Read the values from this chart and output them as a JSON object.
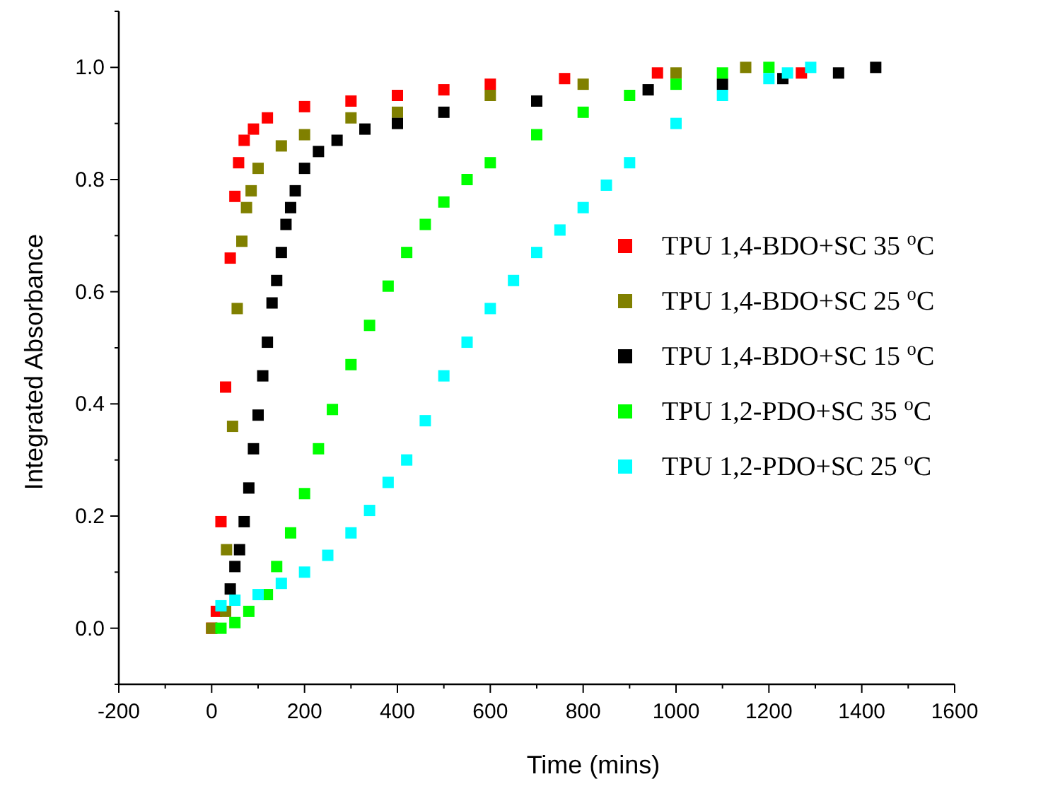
{
  "chart_data": {
    "type": "scatter",
    "xlabel": "Time (mins)",
    "ylabel": "Integrated Absorbance",
    "xlim": [
      -200,
      1600
    ],
    "ylim": [
      -0.1,
      1.1
    ],
    "xticks": [
      -200,
      {
        "value": -100,
        "label": null
      },
      0,
      {
        "value": 100,
        "label": null
      },
      200,
      {
        "value": 300,
        "label": null
      },
      400,
      {
        "value": 500,
        "label": null
      },
      600,
      {
        "value": 700,
        "label": null
      },
      800,
      {
        "value": 900,
        "label": null
      },
      1000,
      {
        "value": 1100,
        "label": null
      },
      1200,
      {
        "value": 1300,
        "label": null
      },
      1400,
      {
        "value": 1500,
        "label": null
      },
      1600
    ],
    "yticks": [
      {
        "value": -0.1,
        "label": null
      },
      {
        "value": 0,
        "label": "0.0"
      },
      {
        "value": 0.1,
        "label": null
      },
      {
        "value": 0.2,
        "label": "0.2"
      },
      {
        "value": 0.3,
        "label": null
      },
      {
        "value": 0.4,
        "label": "0.4"
      },
      {
        "value": 0.5,
        "label": null
      },
      {
        "value": 0.6,
        "label": "0.6"
      },
      {
        "value": 0.7,
        "label": null
      },
      {
        "value": 0.8,
        "label": "0.8"
      },
      {
        "value": 0.9,
        "label": null
      },
      {
        "value": 1,
        "label": "1.0"
      },
      {
        "value": 1.1,
        "label": null
      }
    ],
    "marker": "square",
    "legend": "right",
    "series": [
      {
        "name": "TPU 1,4-BDO+SC 35 $^{o}$C",
        "color": "#ff0000",
        "x": [
          0,
          10,
          20,
          30,
          40,
          50,
          58,
          70,
          90,
          120,
          200,
          300,
          400,
          500,
          600,
          760,
          960,
          1270
        ],
        "values": [
          0,
          0.03,
          0.19,
          0.43,
          0.66,
          0.77,
          0.83,
          0.87,
          0.89,
          0.91,
          0.93,
          0.94,
          0.95,
          0.96,
          0.97,
          0.98,
          0.99,
          0.99
        ]
      },
      {
        "name": "TPU 1,4-BDO+SC 25 $^{o}$C",
        "color": "#808000",
        "x": [
          0,
          30,
          32,
          45,
          55,
          65,
          75,
          85,
          100,
          150,
          200,
          300,
          400,
          600,
          800,
          1000,
          1150
        ],
        "values": [
          0,
          0.03,
          0.14,
          0.36,
          0.57,
          0.69,
          0.75,
          0.78,
          0.82,
          0.86,
          0.88,
          0.91,
          0.92,
          0.95,
          0.97,
          0.99,
          1.0
        ]
      },
      {
        "name": "TPU 1,4-BDO+SC 15 $^{o}$C",
        "color": "#000000",
        "x": [
          40,
          50,
          60,
          70,
          80,
          90,
          100,
          110,
          120,
          130,
          140,
          150,
          160,
          170,
          180,
          200,
          230,
          270,
          330,
          400,
          500,
          700,
          940,
          1100,
          1230,
          1350,
          1430
        ],
        "values": [
          0.07,
          0.11,
          0.14,
          0.19,
          0.25,
          0.32,
          0.38,
          0.45,
          0.51,
          0.58,
          0.62,
          0.67,
          0.72,
          0.75,
          0.78,
          0.82,
          0.85,
          0.87,
          0.89,
          0.9,
          0.92,
          0.94,
          0.96,
          0.97,
          0.98,
          0.99,
          1.0
        ]
      },
      {
        "name": "TPU 1,2-PDO+SC 35 $^{o}$C",
        "color": "#00ff00",
        "x": [
          20,
          50,
          80,
          120,
          140,
          170,
          200,
          230,
          260,
          300,
          340,
          380,
          420,
          460,
          500,
          550,
          600,
          700,
          800,
          900,
          1000,
          1100,
          1200
        ],
        "values": [
          0,
          0.01,
          0.03,
          0.06,
          0.11,
          0.17,
          0.24,
          0.32,
          0.39,
          0.47,
          0.54,
          0.61,
          0.67,
          0.72,
          0.76,
          0.8,
          0.83,
          0.88,
          0.92,
          0.95,
          0.97,
          0.99,
          1.0
        ]
      },
      {
        "name": "TPU 1,2-PDO+SC 25 $^{o}$C",
        "color": "#00ffff",
        "x": [
          20,
          50,
          100,
          150,
          200,
          250,
          300,
          340,
          380,
          420,
          460,
          500,
          550,
          600,
          650,
          700,
          750,
          800,
          850,
          900,
          1000,
          1100,
          1200,
          1240,
          1290
        ],
        "values": [
          0.04,
          0.05,
          0.06,
          0.08,
          0.1,
          0.13,
          0.17,
          0.21,
          0.26,
          0.3,
          0.37,
          0.45,
          0.51,
          0.57,
          0.62,
          0.67,
          0.71,
          0.75,
          0.79,
          0.83,
          0.9,
          0.95,
          0.98,
          0.99,
          1.0
        ]
      }
    ]
  }
}
